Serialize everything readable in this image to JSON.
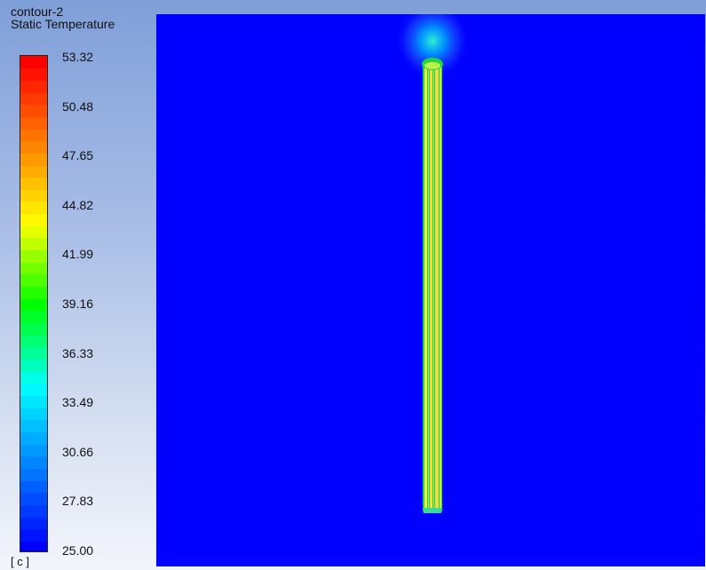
{
  "legend": {
    "contour_name": "contour-2",
    "variable": "Static Temperature",
    "unit": "[ c ]",
    "max": 53.32,
    "min": 25.0,
    "levels": 41,
    "tick_labels": [
      "53.32",
      "50.48",
      "47.65",
      "44.82",
      "41.99",
      "39.16",
      "36.33",
      "33.49",
      "30.66",
      "27.83",
      "25.00"
    ]
  },
  "colors": {
    "background_field": "#0000ff",
    "min_color": "#0000ff",
    "max_color": "#ff0000",
    "colormap": [
      "#0000ff",
      "#0080ff",
      "#00ffff",
      "#00ff00",
      "#ffff00",
      "#ff8000",
      "#ff0000"
    ]
  },
  "viewport": {
    "content": "heated vertical strip surrounded by fluid at ambient temperature",
    "field_temperature": 25.0
  }
}
